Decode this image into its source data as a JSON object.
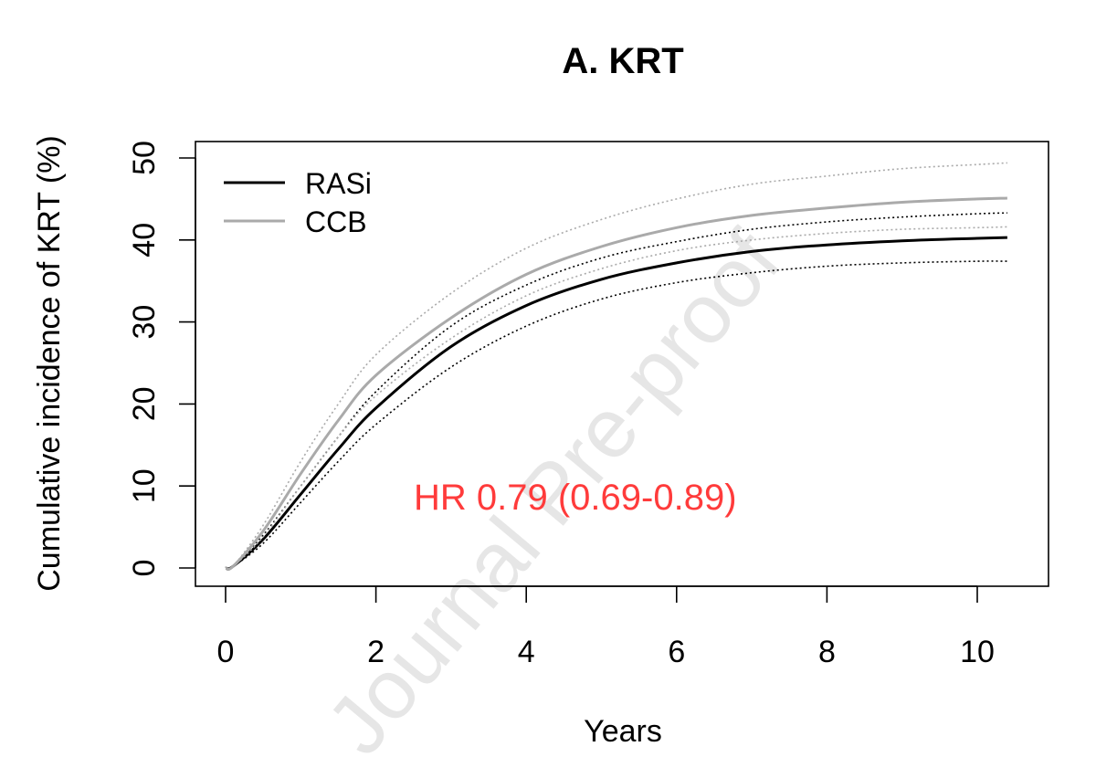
{
  "chart_data": {
    "type": "line",
    "title": "A. KRT",
    "xlabel": "Years",
    "ylabel": "Cumulative incidence of KRT (%)",
    "xlim": [
      0,
      10.4
    ],
    "ylim": [
      0,
      50
    ],
    "x_ticks": [
      0,
      2,
      4,
      6,
      8,
      10
    ],
    "y_ticks": [
      0,
      10,
      20,
      30,
      40,
      50
    ],
    "grid": false,
    "legend_position": "top-left",
    "annotation": "HR 0.79 (0.69-0.89)",
    "watermark": "Journal Pre-proof",
    "colors": {
      "rasi": "#000000",
      "ccb": "#aaaaaa",
      "annotation": "#ff3b3b",
      "watermark": "#e6e6e6"
    },
    "series": [
      {
        "name": "RASi",
        "color": "#000000",
        "style": "solid",
        "x": [
          0,
          0.1,
          0.5,
          1,
          1.5,
          2,
          3,
          4,
          5,
          6,
          7,
          8,
          9,
          10,
          10.4
        ],
        "y": [
          0,
          0.2,
          3.5,
          9,
          14.5,
          19.5,
          27,
          32,
          35.2,
          37.2,
          38.6,
          39.4,
          39.9,
          40.2,
          40.3
        ]
      },
      {
        "name": "RASi lower CI",
        "color": "#000000",
        "style": "dotted",
        "in_legend": false,
        "x": [
          0,
          0.1,
          0.5,
          1,
          1.5,
          2,
          3,
          4,
          5,
          6,
          7,
          8,
          9,
          10,
          10.4
        ],
        "y": [
          0,
          0.2,
          3,
          8,
          13,
          17.5,
          24.5,
          29.5,
          32.8,
          34.8,
          36,
          36.8,
          37.2,
          37.4,
          37.4
        ]
      },
      {
        "name": "RASi upper CI",
        "color": "#000000",
        "style": "dotted",
        "in_legend": false,
        "x": [
          0,
          0.1,
          0.5,
          1,
          1.5,
          2,
          3,
          4,
          5,
          6,
          7,
          8,
          9,
          10,
          10.4
        ],
        "y": [
          0,
          0.2,
          4,
          10,
          16,
          21.5,
          29.5,
          34.5,
          37.8,
          39.8,
          41.3,
          42.2,
          42.8,
          43.2,
          43.3
        ]
      },
      {
        "name": "CCB",
        "color": "#aaaaaa",
        "style": "solid",
        "x": [
          0,
          0.1,
          0.5,
          1,
          1.5,
          2,
          3,
          4,
          5,
          6,
          7,
          8,
          9,
          10,
          10.4
        ],
        "y": [
          0,
          0.2,
          4.5,
          11.5,
          18,
          23.5,
          30.5,
          35.8,
          39.2,
          41.5,
          43,
          43.9,
          44.6,
          45,
          45.1
        ]
      },
      {
        "name": "CCB lower CI",
        "color": "#aaaaaa",
        "style": "dotted",
        "in_legend": false,
        "x": [
          0,
          0.1,
          0.5,
          1,
          1.5,
          2,
          3,
          4,
          5,
          6,
          7,
          8,
          9,
          10,
          10.4
        ],
        "y": [
          0,
          0.2,
          3.8,
          10,
          16,
          21,
          28,
          33.2,
          36.5,
          38.7,
          40,
          40.8,
          41.3,
          41.5,
          41.6
        ]
      },
      {
        "name": "CCB upper CI",
        "color": "#aaaaaa",
        "style": "dotted",
        "in_legend": false,
        "x": [
          0,
          0.1,
          0.5,
          1,
          1.5,
          2,
          3,
          4,
          5,
          6,
          7,
          8,
          9,
          10,
          10.4
        ],
        "y": [
          0,
          0.2,
          5.2,
          13,
          20,
          26,
          33.5,
          39,
          42.5,
          45,
          46.8,
          47.8,
          48.7,
          49.2,
          49.4
        ]
      }
    ]
  }
}
